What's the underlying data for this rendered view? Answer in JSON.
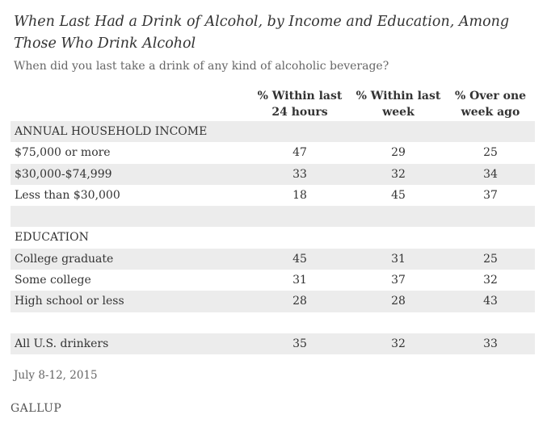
{
  "title": "When Last Had a Drink of Alcohol, by Income and Education, Among Those Who Drink Alcohol",
  "subtitle": "When did you last take a drink of any kind of alcoholic beverage?",
  "chart_data": {
    "type": "table",
    "title": "When Last Had a Drink of Alcohol, by Income and Education, Among Those Who Drink Alcohol",
    "subtitle": "When did you last take a drink of any kind of alcoholic beverage?",
    "columns": [
      "% Within last 24 hours",
      "% Within last week",
      "% Over one week ago"
    ],
    "rows": [
      {
        "label": "ANNUAL HOUSEHOLD INCOME",
        "values": [],
        "section": true,
        "shaded": true
      },
      {
        "label": "$75,000 or more",
        "values": [
          "47",
          "29",
          "25"
        ],
        "shaded": false
      },
      {
        "label": "$30,000-$74,999",
        "values": [
          "33",
          "32",
          "34"
        ],
        "shaded": true
      },
      {
        "label": "Less than $30,000",
        "values": [
          "18",
          "45",
          "37"
        ],
        "shaded": false
      },
      {
        "label": "",
        "values": [],
        "spacer": true,
        "shaded": true
      },
      {
        "label": "EDUCATION",
        "values": [],
        "section": true,
        "shaded": false
      },
      {
        "label": "College graduate",
        "values": [
          "45",
          "31",
          "25"
        ],
        "shaded": true
      },
      {
        "label": "Some college",
        "values": [
          "31",
          "37",
          "32"
        ],
        "shaded": false
      },
      {
        "label": "High school or less",
        "values": [
          "28",
          "28",
          "43"
        ],
        "shaded": true
      },
      {
        "label": "",
        "values": [],
        "spacer": true,
        "shaded": false
      },
      {
        "label": "All U.S. drinkers",
        "values": [
          "35",
          "32",
          "33"
        ],
        "shaded": true
      }
    ]
  },
  "footnote": "July 8-12, 2015",
  "source_logo": "GALLUP"
}
